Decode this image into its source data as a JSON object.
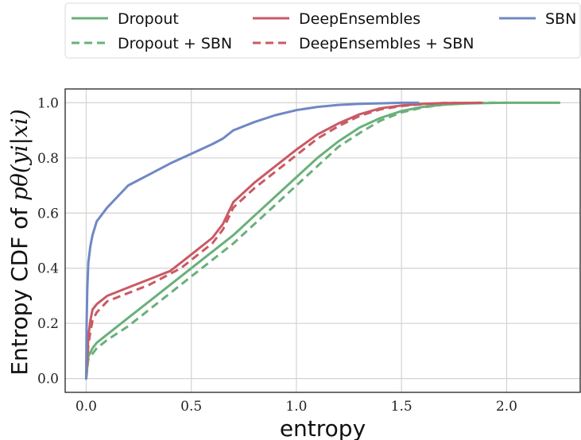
{
  "chart_data": {
    "type": "line",
    "xlabel": "entropy",
    "ylabel_prefix": "Entropy CDF of ",
    "ylabel_math": "pθ(yi|xi)",
    "xlim": [
      -0.1,
      2.35
    ],
    "ylim": [
      -0.05,
      1.05
    ],
    "xticks": [
      0.0,
      0.5,
      1.0,
      1.5,
      2.0
    ],
    "xtick_labels": [
      "0.0",
      "0.5",
      "1.0",
      "1.5",
      "2.0"
    ],
    "yticks": [
      0.0,
      0.2,
      0.4,
      0.6,
      0.8,
      1.0
    ],
    "ytick_labels": [
      "0.0",
      "0.2",
      "0.4",
      "0.6",
      "0.8",
      "1.0"
    ],
    "grid": true,
    "legend_position": "top, outside plot, 3 columns",
    "series": [
      {
        "name": "Dropout",
        "color": "#6ab07a",
        "style": "solid",
        "x": [
          0.0,
          0.01,
          0.03,
          0.05,
          0.1,
          0.2,
          0.3,
          0.4,
          0.5,
          0.6,
          0.7,
          0.8,
          0.9,
          1.0,
          1.1,
          1.2,
          1.3,
          1.4,
          1.5,
          1.6,
          1.7,
          1.8,
          1.9,
          2.0,
          2.1,
          2.25
        ],
        "y": [
          0.0,
          0.08,
          0.11,
          0.13,
          0.16,
          0.22,
          0.28,
          0.34,
          0.4,
          0.46,
          0.52,
          0.59,
          0.66,
          0.73,
          0.8,
          0.86,
          0.91,
          0.945,
          0.97,
          0.985,
          0.993,
          0.997,
          0.999,
          1.0,
          1.0,
          1.0
        ]
      },
      {
        "name": "Dropout + SBN",
        "color": "#6ab07a",
        "style": "dashed",
        "x": [
          0.0,
          0.01,
          0.03,
          0.05,
          0.1,
          0.2,
          0.3,
          0.4,
          0.5,
          0.6,
          0.7,
          0.8,
          0.9,
          1.0,
          1.1,
          1.2,
          1.3,
          1.4,
          1.5,
          1.6,
          1.7,
          1.8,
          1.9,
          2.0
        ],
        "y": [
          0.0,
          0.07,
          0.09,
          0.11,
          0.14,
          0.19,
          0.25,
          0.31,
          0.37,
          0.43,
          0.49,
          0.56,
          0.63,
          0.7,
          0.77,
          0.84,
          0.89,
          0.935,
          0.965,
          0.983,
          0.993,
          0.998,
          1.0,
          1.0
        ]
      },
      {
        "name": "DeepEnsembles",
        "color": "#c95a64",
        "style": "solid",
        "x": [
          0.0,
          0.01,
          0.02,
          0.03,
          0.05,
          0.1,
          0.2,
          0.3,
          0.4,
          0.45,
          0.5,
          0.6,
          0.65,
          0.7,
          0.8,
          0.9,
          1.0,
          1.1,
          1.2,
          1.3,
          1.4,
          1.5,
          1.6,
          1.7,
          1.88
        ],
        "y": [
          0.0,
          0.15,
          0.21,
          0.25,
          0.27,
          0.3,
          0.33,
          0.36,
          0.39,
          0.42,
          0.45,
          0.51,
          0.56,
          0.64,
          0.71,
          0.77,
          0.83,
          0.885,
          0.925,
          0.958,
          0.98,
          0.99,
          0.996,
          0.999,
          1.0
        ]
      },
      {
        "name": "DeepEnsembles + SBN",
        "color": "#c95a64",
        "style": "dashed",
        "x": [
          0.0,
          0.01,
          0.02,
          0.03,
          0.05,
          0.1,
          0.2,
          0.3,
          0.4,
          0.45,
          0.5,
          0.6,
          0.65,
          0.7,
          0.8,
          0.9,
          1.0,
          1.1,
          1.2,
          1.3,
          1.4,
          1.5,
          1.6,
          1.7,
          1.88
        ],
        "y": [
          0.0,
          0.12,
          0.17,
          0.21,
          0.24,
          0.28,
          0.31,
          0.34,
          0.38,
          0.4,
          0.43,
          0.49,
          0.54,
          0.62,
          0.69,
          0.75,
          0.81,
          0.87,
          0.915,
          0.952,
          0.976,
          0.988,
          0.995,
          0.999,
          1.0
        ]
      },
      {
        "name": "SBN",
        "color": "#6f88c4",
        "style": "solid",
        "x": [
          0.0,
          0.002,
          0.005,
          0.01,
          0.02,
          0.03,
          0.05,
          0.08,
          0.1,
          0.15,
          0.2,
          0.3,
          0.4,
          0.5,
          0.6,
          0.65,
          0.7,
          0.8,
          0.9,
          1.0,
          1.1,
          1.2,
          1.3,
          1.4,
          1.5,
          1.58
        ],
        "y": [
          0.0,
          0.2,
          0.32,
          0.42,
          0.48,
          0.52,
          0.57,
          0.6,
          0.62,
          0.66,
          0.7,
          0.74,
          0.78,
          0.815,
          0.85,
          0.87,
          0.9,
          0.93,
          0.955,
          0.973,
          0.985,
          0.992,
          0.996,
          0.998,
          1.0,
          1.0
        ]
      }
    ]
  }
}
